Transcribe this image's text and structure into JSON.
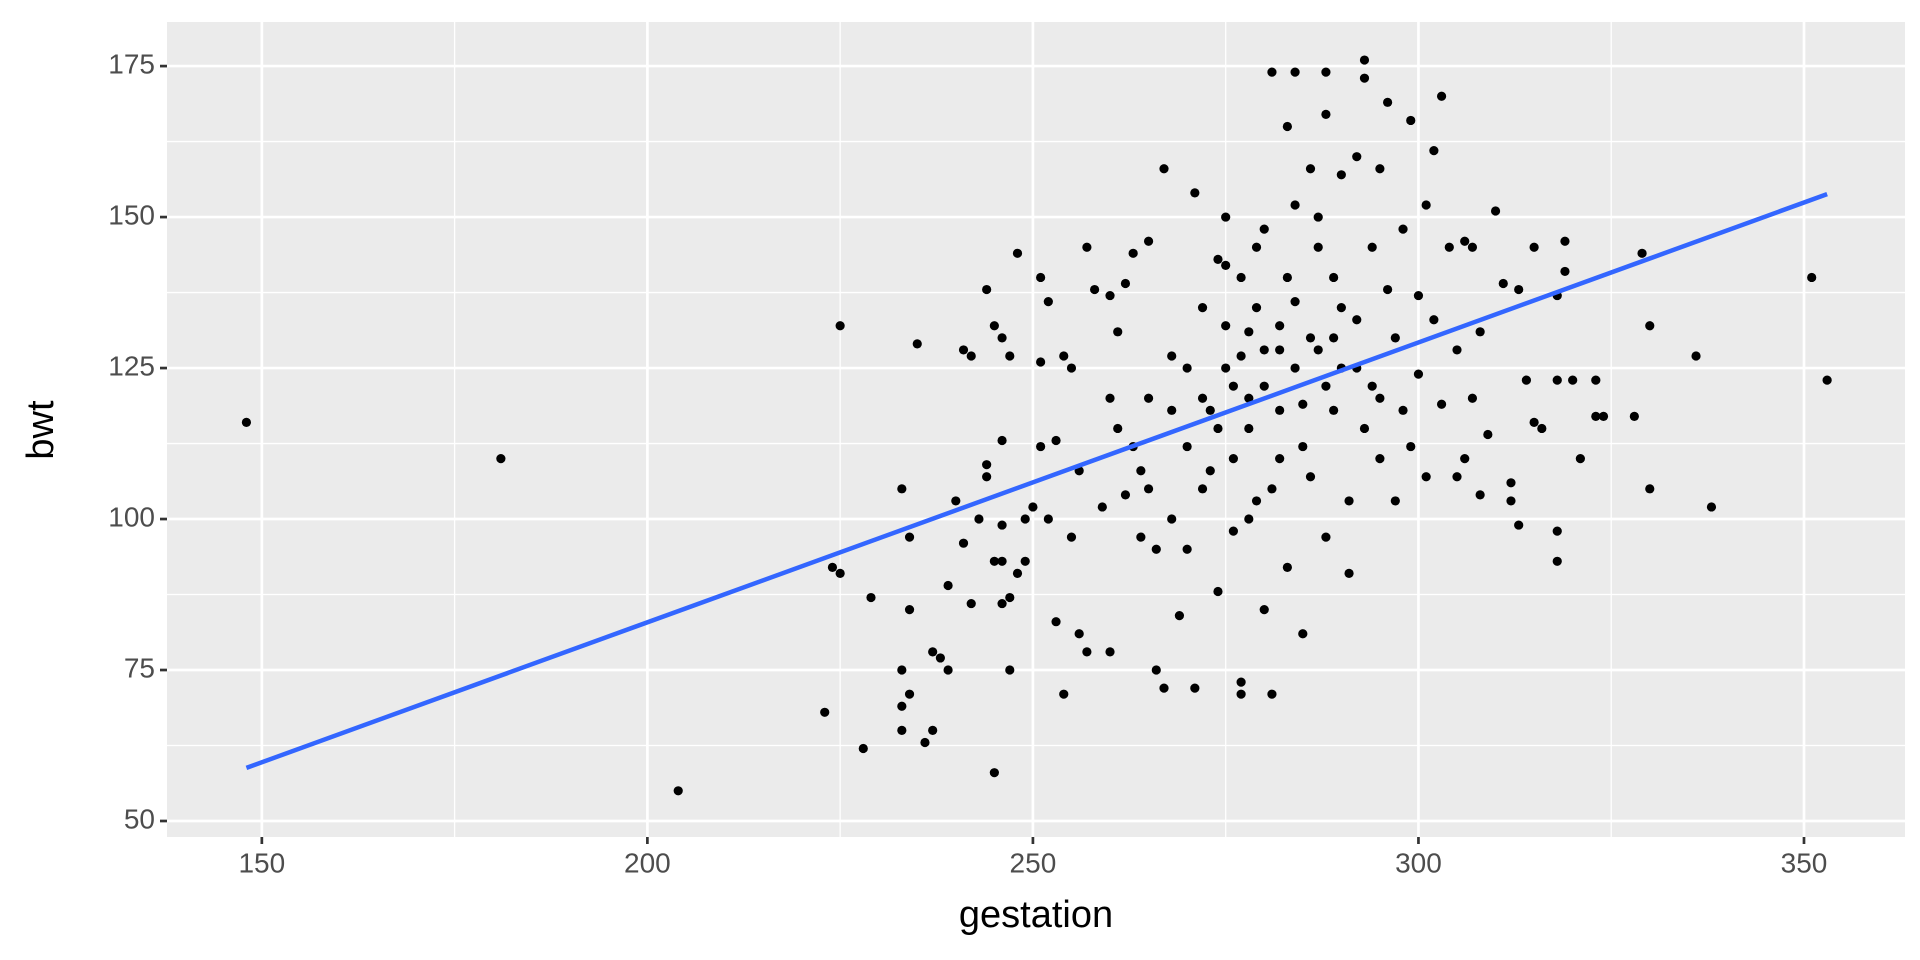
{
  "chart_data": {
    "type": "scatter",
    "x_label": "gestation",
    "y_label": "bwt",
    "xlim": [
      137.7,
      363.1
    ],
    "ylim": [
      47.35,
      182.3
    ],
    "xticks": [
      150,
      200,
      250,
      300,
      350
    ],
    "yticks": [
      50,
      75,
      100,
      125,
      150,
      175
    ],
    "minor_xticks": [
      175,
      225,
      275,
      325
    ],
    "minor_yticks": [
      62.5,
      87.5,
      112.5,
      137.5,
      162.5
    ],
    "grid": true,
    "color": "#000000",
    "x": [
      148,
      181,
      204,
      223,
      224,
      225,
      225,
      228,
      229,
      233,
      233,
      233,
      233,
      234,
      234,
      234,
      235,
      236,
      237,
      237,
      238,
      239,
      239,
      240,
      241,
      241,
      242,
      242,
      243,
      244,
      244,
      244,
      245,
      245,
      245,
      246,
      246,
      246,
      246,
      246,
      247,
      247,
      247,
      248,
      248,
      249,
      249,
      250,
      251,
      251,
      251,
      252,
      252,
      253,
      253,
      254,
      254,
      255,
      255,
      256,
      256,
      257,
      257,
      258,
      259,
      260,
      260,
      261,
      261,
      262,
      262,
      263,
      264,
      264,
      265,
      265,
      266,
      266,
      267,
      267,
      268,
      268,
      269,
      270,
      271,
      271,
      272,
      272,
      273,
      274,
      274,
      275,
      275,
      276,
      276,
      277,
      277,
      277,
      278,
      278,
      279,
      279,
      280,
      280,
      281,
      281,
      282,
      282,
      283,
      283,
      284,
      284,
      285,
      285,
      286,
      286,
      287,
      287,
      288,
      288,
      288,
      289,
      289,
      290,
      290,
      291,
      291,
      292,
      292,
      293,
      293,
      293,
      294,
      294,
      295,
      295,
      296,
      296,
      297,
      297,
      298,
      298,
      299,
      299,
      300,
      300,
      301,
      301,
      302,
      302,
      303,
      303,
      304,
      305,
      305,
      306,
      306,
      307,
      307,
      308,
      308,
      309,
      310,
      311,
      312,
      312,
      313,
      313,
      314,
      315,
      315,
      316,
      318,
      318,
      318,
      318,
      319,
      319,
      320,
      321,
      323,
      323,
      324,
      328,
      329,
      330,
      330,
      336,
      338,
      351,
      353,
      270,
      272,
      275,
      278,
      280,
      282,
      284,
      286,
      283,
      279,
      276,
      274,
      281,
      285,
      288,
      290,
      287,
      278,
      273,
      268,
      265,
      270,
      263,
      260,
      275,
      280,
      284,
      277,
      289,
      292,
      295,
      282
    ],
    "values": [
      116,
      110,
      55,
      68,
      92,
      91,
      132,
      62,
      87,
      75,
      69,
      65,
      105,
      97,
      85,
      71,
      129,
      63,
      78,
      65,
      77,
      89,
      75,
      103,
      96,
      128,
      127,
      86,
      100,
      109,
      107,
      138,
      132,
      93,
      58,
      99,
      93,
      86,
      113,
      130,
      127,
      87,
      75,
      144,
      91,
      93,
      100,
      102,
      112,
      140,
      126,
      136,
      100,
      83,
      113,
      71,
      127,
      125,
      97,
      81,
      108,
      145,
      78,
      138,
      102,
      78,
      137,
      115,
      131,
      104,
      139,
      144,
      97,
      108,
      120,
      146,
      75,
      95,
      72,
      158,
      100,
      127,
      84,
      112,
      154,
      72,
      105,
      135,
      118,
      143,
      88,
      150,
      125,
      110,
      98,
      73,
      71,
      140,
      131,
      115,
      103,
      145,
      122,
      85,
      71,
      174,
      128,
      110,
      165,
      92,
      174,
      136,
      119,
      81,
      158,
      107,
      128,
      150,
      174,
      167,
      97,
      140,
      118,
      125,
      157,
      103,
      91,
      160,
      133,
      176,
      173,
      115,
      145,
      122,
      158,
      110,
      138,
      169,
      130,
      103,
      148,
      118,
      166,
      112,
      137,
      124,
      152,
      107,
      161,
      133,
      170,
      119,
      145,
      128,
      107,
      146,
      110,
      145,
      120,
      131,
      104,
      114,
      151,
      139,
      106,
      103,
      138,
      99,
      123,
      116,
      145,
      115,
      137,
      123,
      98,
      93,
      141,
      146,
      123,
      110,
      123,
      117,
      117,
      117,
      144,
      132,
      105,
      127,
      102,
      140,
      123,
      125,
      120,
      132,
      120,
      128,
      118,
      125,
      130,
      140,
      135,
      122,
      115,
      105,
      112,
      122,
      135,
      145,
      100,
      108,
      118,
      105,
      95,
      112,
      120,
      142,
      148,
      152,
      127,
      130,
      125,
      120,
      132
    ],
    "fit": {
      "x": [
        148,
        353
      ],
      "values": [
        58.8,
        153.8
      ],
      "color": "#3366ff"
    }
  }
}
